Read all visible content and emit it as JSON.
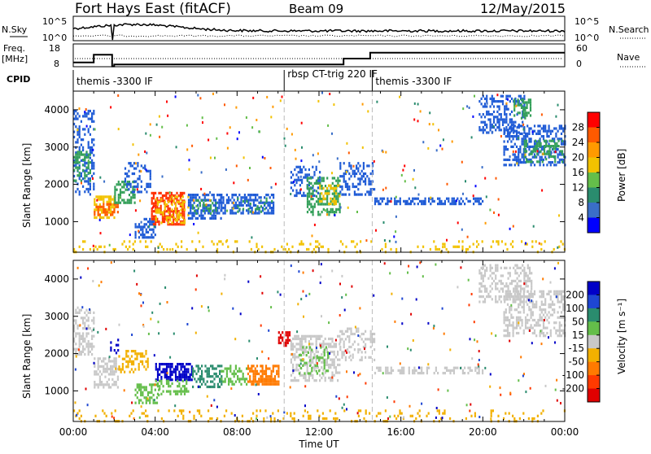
{
  "header": {
    "title": "Fort Hays East (fitACF)",
    "beam": "Beam 09",
    "date": "12/May/2015"
  },
  "strip": {
    "nsky_label": "N.Sky",
    "nsky_ticks": [
      "10^5",
      "10^0"
    ],
    "nsearch_label": "N.Search",
    "nsearch_ticks": [
      "10^5",
      "10^0"
    ],
    "freq_label": "Freq.",
    "freq_unit": "[MHz]",
    "freq_ticks": [
      "18",
      "8"
    ],
    "nave_label": "Nave",
    "nave_ticks": [
      "60",
      "0"
    ],
    "cpid_label": "CPID",
    "cpid_segments": [
      {
        "start_hour": 0,
        "end_hour": 10.3,
        "name": "themis -3300 IF"
      },
      {
        "start_hour": 10.3,
        "end_hour": 14.6,
        "name": "rbsp CT-trig 220 IF"
      },
      {
        "start_hour": 14.6,
        "end_hour": 24,
        "name": "themis -3300 IF"
      }
    ],
    "freq_steps": [
      {
        "start_hour": 0,
        "end_hour": 1.0,
        "mhz": 11
      },
      {
        "start_hour": 1.0,
        "end_hour": 1.9,
        "mhz": 15
      },
      {
        "start_hour": 1.9,
        "end_hour": 2.0,
        "mhz": 9
      },
      {
        "start_hour": 2.0,
        "end_hour": 13.2,
        "mhz": 10
      },
      {
        "start_hour": 13.2,
        "end_hour": 14.5,
        "mhz": 13
      },
      {
        "start_hour": 14.5,
        "end_hour": 24,
        "mhz": 16
      }
    ]
  },
  "chart_data": [
    {
      "type": "heatmap",
      "name": "power",
      "xlabel": "Time UT",
      "ylabel": "Slant Range [km]",
      "xlim_hours": [
        0,
        24
      ],
      "ylim": [
        180,
        4500
      ],
      "yticks": [
        "1000",
        "2000",
        "3000",
        "4000"
      ],
      "colorbar": {
        "label": "Power [dB]",
        "ticks": [
          "28",
          "24",
          "20",
          "16",
          "12",
          "8",
          "4"
        ],
        "colors": [
          "#ff0000",
          "#ff5a00",
          "#ff9a00",
          "#f2c200",
          "#64be4a",
          "#2a8c6e",
          "#3a6ec8",
          "#0000ff"
        ]
      },
      "regions": [
        {
          "t": [
            0.0,
            1.0
          ],
          "r": [
            1700,
            4000
          ],
          "color": "#1f5bd6",
          "density": 0.35
        },
        {
          "t": [
            0.0,
            0.8
          ],
          "r": [
            2100,
            2900
          ],
          "color": "#35a05a",
          "density": 0.5
        },
        {
          "t": [
            1.0,
            2.0
          ],
          "r": [
            1100,
            1700
          ],
          "color": "#f2c200",
          "density": 0.6
        },
        {
          "t": [
            1.0,
            2.2
          ],
          "r": [
            1200,
            1500
          ],
          "color": "#ff5a00",
          "density": 0.5
        },
        {
          "t": [
            2.0,
            3.0
          ],
          "r": [
            1500,
            2100
          ],
          "color": "#35a05a",
          "density": 0.55
        },
        {
          "t": [
            2.5,
            3.8
          ],
          "r": [
            1800,
            2600
          ],
          "color": "#1f5bd6",
          "density": 0.35
        },
        {
          "t": [
            3.0,
            4.0
          ],
          "r": [
            600,
            1100
          ],
          "color": "#1f5bd6",
          "density": 0.55
        },
        {
          "t": [
            3.8,
            5.4
          ],
          "r": [
            900,
            1800
          ],
          "color": "#ff3000",
          "density": 0.65
        },
        {
          "t": [
            4.0,
            5.6
          ],
          "r": [
            1000,
            1700
          ],
          "color": "#f2c200",
          "density": 0.4
        },
        {
          "t": [
            5.6,
            7.2
          ],
          "r": [
            1100,
            1750
          ],
          "color": "#1f5bd6",
          "density": 0.6
        },
        {
          "t": [
            5.8,
            7.0
          ],
          "r": [
            1200,
            1600
          ],
          "color": "#35a05a",
          "density": 0.35
        },
        {
          "t": [
            7.2,
            9.8
          ],
          "r": [
            1200,
            1750
          ],
          "color": "#1f5bd6",
          "density": 0.6
        },
        {
          "t": [
            8.0,
            9.7
          ],
          "r": [
            1300,
            1650
          ],
          "color": "#35a05a",
          "density": 0.25
        },
        {
          "t": [
            10.6,
            12.0
          ],
          "r": [
            1700,
            2500
          ],
          "color": "#1f5bd6",
          "density": 0.45
        },
        {
          "t": [
            11.4,
            13.0
          ],
          "r": [
            1200,
            2200
          ],
          "color": "#35a05a",
          "density": 0.45
        },
        {
          "t": [
            12.0,
            13.0
          ],
          "r": [
            1500,
            2000
          ],
          "color": "#f2c200",
          "density": 0.3
        },
        {
          "t": [
            13.0,
            14.7
          ],
          "r": [
            1700,
            2600
          ],
          "color": "#1f5bd6",
          "density": 0.4
        },
        {
          "t": [
            14.7,
            20.0
          ],
          "r": [
            1500,
            1650
          ],
          "color": "#1f5bd6",
          "density": 0.55
        },
        {
          "t": [
            19.8,
            22.0
          ],
          "r": [
            3400,
            4400
          ],
          "color": "#1f5bd6",
          "density": 0.4
        },
        {
          "t": [
            21.5,
            22.3
          ],
          "r": [
            3800,
            4300
          ],
          "color": "#35a05a",
          "density": 0.5
        },
        {
          "t": [
            21.0,
            24.0
          ],
          "r": [
            2500,
            3600
          ],
          "color": "#1f5bd6",
          "density": 0.45
        },
        {
          "t": [
            22.0,
            24.0
          ],
          "r": [
            2600,
            3200
          ],
          "color": "#35a05a",
          "density": 0.4
        },
        {
          "t": [
            0.0,
            24.0
          ],
          "r": [
            180,
            500
          ],
          "color": "#f2c200",
          "density": 0.12
        }
      ]
    },
    {
      "type": "heatmap",
      "name": "velocity",
      "xlabel": "Time UT",
      "ylabel": "Slant Range [km]",
      "xlim_hours": [
        0,
        24
      ],
      "ylim": [
        180,
        4500
      ],
      "yticks": [
        "1000",
        "2000",
        "3000",
        "4000"
      ],
      "xticks": [
        "00:00",
        "04:00",
        "08:00",
        "12:00",
        "16:00",
        "20:00",
        "00:00"
      ],
      "colorbar": {
        "label": "Velocity [m s⁻¹]",
        "ticks": [
          "200",
          "100",
          "50",
          "15",
          "-15",
          "-50",
          "-100",
          "-200"
        ],
        "colors": [
          "#0000c8",
          "#1e46d2",
          "#2a8c6e",
          "#64be4a",
          "#c8c8c8",
          "#f2b000",
          "#ff7a00",
          "#ff3a00",
          "#e00000"
        ]
      },
      "regions": [
        {
          "t": [
            0.0,
            1.0
          ],
          "r": [
            2000,
            3200
          ],
          "color": "#c8c8c8",
          "density": 0.45
        },
        {
          "t": [
            1.0,
            2.2
          ],
          "r": [
            1100,
            1900
          ],
          "color": "#c8c8c8",
          "density": 0.55
        },
        {
          "t": [
            1.8,
            2.2
          ],
          "r": [
            2000,
            2400
          ],
          "color": "#0000c8",
          "density": 0.4
        },
        {
          "t": [
            2.2,
            3.6
          ],
          "r": [
            1500,
            2100
          ],
          "color": "#f2b000",
          "density": 0.45
        },
        {
          "t": [
            3.0,
            4.2
          ],
          "r": [
            700,
            1200
          ],
          "color": "#64be4a",
          "density": 0.55
        },
        {
          "t": [
            4.0,
            5.8
          ],
          "r": [
            1300,
            1750
          ],
          "color": "#0000c8",
          "density": 0.7
        },
        {
          "t": [
            4.0,
            5.6
          ],
          "r": [
            900,
            1300
          ],
          "color": "#64be4a",
          "density": 0.45
        },
        {
          "t": [
            5.8,
            7.2
          ],
          "r": [
            1100,
            1700
          ],
          "color": "#2a8c6e",
          "density": 0.5
        },
        {
          "t": [
            7.2,
            8.5
          ],
          "r": [
            1200,
            1700
          ],
          "color": "#64be4a",
          "density": 0.45
        },
        {
          "t": [
            8.5,
            10.0
          ],
          "r": [
            1200,
            1700
          ],
          "color": "#ff7a00",
          "density": 0.7
        },
        {
          "t": [
            10.0,
            10.6
          ],
          "r": [
            2200,
            2600
          ],
          "color": "#e00000",
          "density": 0.5
        },
        {
          "t": [
            10.6,
            13.0
          ],
          "r": [
            1300,
            2500
          ],
          "color": "#c8c8c8",
          "density": 0.45
        },
        {
          "t": [
            11.0,
            12.5
          ],
          "r": [
            1500,
            2200
          ],
          "color": "#64be4a",
          "density": 0.25
        },
        {
          "t": [
            13.0,
            14.7
          ],
          "r": [
            1800,
            2700
          ],
          "color": "#c8c8c8",
          "density": 0.35
        },
        {
          "t": [
            14.7,
            20.0
          ],
          "r": [
            1500,
            1650
          ],
          "color": "#c8c8c8",
          "density": 0.45
        },
        {
          "t": [
            19.8,
            22.4
          ],
          "r": [
            3400,
            4400
          ],
          "color": "#c8c8c8",
          "density": 0.45
        },
        {
          "t": [
            21.0,
            24.0
          ],
          "r": [
            2500,
            3700
          ],
          "color": "#c8c8c8",
          "density": 0.45
        },
        {
          "t": [
            0.0,
            24.0
          ],
          "r": [
            180,
            500
          ],
          "color": "#f2b000",
          "density": 0.14
        }
      ]
    }
  ]
}
